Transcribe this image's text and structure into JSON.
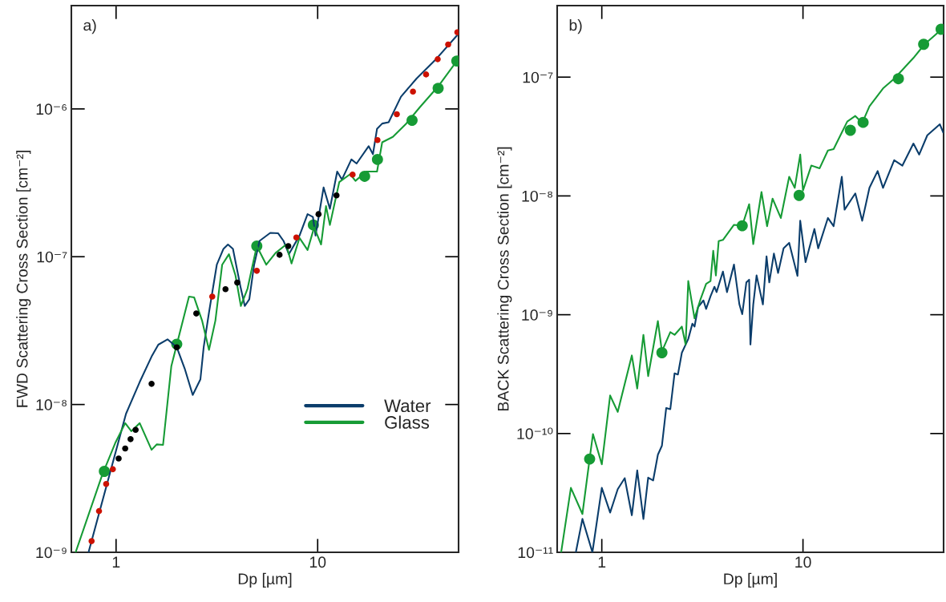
{
  "chart_data": [
    {
      "type": "line",
      "xlabel": "Dp [µm]",
      "ylabel": "FWD Scattering Cross Section [cm⁻²]",
      "annotations": [
        "a)"
      ],
      "log": "xy",
      "grid": false,
      "legend": "right",
      "xlim": [
        0.6,
        50
      ],
      "ylim": [
        1e-09,
        5e-06
      ],
      "xticks": [
        1,
        10
      ],
      "yticks": [
        {
          "value": 1e-09,
          "label": "10⁻⁹"
        },
        {
          "value": 1e-08,
          "label": "10⁻⁸"
        },
        {
          "value": 1e-07,
          "label": "10⁻⁷"
        },
        {
          "value": 1e-06,
          "label": "10⁻⁶"
        }
      ],
      "series": [
        {
          "name": "Water",
          "type": "line",
          "color": "#0b3d6b",
          "marker": "none",
          "x": [
            0.73,
            1.12,
            1.31,
            1.5,
            1.62,
            1.8,
            2.0,
            2.19,
            2.4,
            2.62,
            2.72,
            2.89,
            3.16,
            3.41,
            3.59,
            3.8,
            4.16,
            4.35,
            4.58,
            4.84,
            5.15,
            5.82,
            6.37,
            6.77,
            7.2,
            8.13,
            8.91,
            9.47,
            9.76,
            10.7,
            11.5,
            12.5,
            13.2,
            14.7,
            15.6,
            17.9,
            18.8,
            19.7,
            20.9,
            22.5,
            25.9,
            31.0,
            38.4,
            49.0
          ],
          "values": [
            1e-09,
            8.65e-09,
            1.42e-08,
            2.11e-08,
            2.54e-08,
            2.76e-08,
            2.44e-08,
            1.75e-08,
            1.16e-08,
            1.48e-08,
            2.44e-08,
            4.19e-08,
            8.83e-08,
            1.13e-07,
            1.21e-07,
            1.13e-07,
            6.08e-08,
            4.64e-08,
            5.15e-08,
            8.83e-08,
            1.28e-07,
            1.45e-07,
            1.44e-07,
            1.28e-07,
            1.04e-07,
            1.39e-07,
            1.94e-07,
            1.86e-07,
            1.39e-07,
            2.94e-07,
            2.11e-07,
            3.77e-07,
            3.33e-07,
            4.55e-07,
            4.27e-07,
            5.6e-07,
            4.94e-07,
            7.33e-07,
            7.96e-07,
            8.13e-07,
            1.21e-06,
            1.61e-06,
            2.15e-06,
            3.13e-06
          ]
        },
        {
          "name": "Glass",
          "type": "line",
          "color": "#169b35",
          "marker": "none",
          "x": [
            0.63,
            0.853,
            0.99,
            1.11,
            1.19,
            1.31,
            1.5,
            1.59,
            1.71,
            1.88,
            2.0,
            2.3,
            2.44,
            2.67,
            2.89,
            3.11,
            3.36,
            3.63,
            3.91,
            4.16,
            4.49,
            4.7,
            4.99,
            5.56,
            6.18,
            6.98,
            7.42,
            8.13,
            8.91,
            9.61,
            10.4,
            11.0,
            11.5,
            12.8,
            14.5,
            15.4,
            17.4,
            19.7,
            20.9,
            23.6,
            27.5,
            32.0,
            39.6,
            49.0
          ],
          "values": [
            1e-09,
            3.33e-09,
            5.48e-09,
            7.48e-09,
            6.6e-09,
            7.48e-09,
            4.94e-09,
            5.37e-09,
            5.33e-09,
            1.82e-08,
            2.54e-08,
            5.37e-08,
            5.3e-08,
            3.7e-08,
            2.34e-08,
            3.7e-08,
            8.83e-08,
            1.04e-07,
            7.48e-08,
            4.64e-08,
            6.08e-08,
            8.13e-08,
            1.18e-07,
            8.83e-08,
            1.06e-07,
            1.21e-07,
            9e-08,
            1.34e-07,
            1.11e-07,
            1.58e-07,
            1.21e-07,
            2.2e-07,
            1.64e-07,
            3.2e-07,
            3.62e-07,
            3.26e-07,
            3.77e-07,
            3.77e-07,
            5.95e-07,
            6.47e-07,
            7.96e-07,
            1.02e-06,
            1.42e-06,
            2.11e-06
          ]
        },
        {
          "type": "scatter",
          "color": "#169b35",
          "marker": "circle",
          "x": [
            0.875,
            2.0,
            4.99,
            9.52,
            17.1,
            19.8,
            29.4,
            39.6,
            49.0
          ],
          "values": [
            3.53e-09,
            2.56e-08,
            1.18e-07,
            1.64e-07,
            3.5e-07,
            4.55e-07,
            8.37e-07,
            1.38e-06,
            2.11e-06
          ]
        },
        {
          "type": "scatter",
          "color": "#cc1100",
          "marker": "circle",
          "x": [
            0.756,
            0.823,
            0.893,
            0.964,
            3.0,
            4.99,
            7.84,
            14.9,
            19.8,
            24.7,
            29.7,
            34.5,
            39.4,
            44.4,
            49.3
          ],
          "values": [
            1.19e-09,
            1.9e-09,
            2.9e-09,
            3.65e-09,
            5.37e-08,
            8.03e-08,
            1.35e-07,
            3.59e-07,
            6.15e-07,
            9.2e-07,
            1.31e-06,
            1.71e-06,
            2.17e-06,
            2.73e-06,
            3.3e-06
          ]
        },
        {
          "type": "scatter",
          "color": "#000000",
          "marker": "circle",
          "x": [
            1.03,
            1.11,
            1.18,
            1.25,
            1.5,
            2.0,
            2.5,
            3.49,
            3.99,
            6.47,
            7.15,
            10.1,
            12.4
          ],
          "values": [
            4.31e-09,
            5.04e-09,
            5.83e-09,
            6.74e-09,
            1.38e-08,
            2.44e-08,
            4.13e-08,
            6.03e-08,
            6.68e-08,
            1.03e-07,
            1.18e-07,
            1.94e-07,
            2.6e-07
          ]
        }
      ]
    },
    {
      "type": "line",
      "xlabel": "Dp [µm]",
      "ylabel": "BACK Scattering Cross Section [cm⁻²]",
      "annotations": [
        "b)"
      ],
      "log": "xy",
      "grid": false,
      "xlim": [
        0.6,
        50
      ],
      "ylim": [
        1e-11,
        4e-07
      ],
      "xticks": [
        1,
        10
      ],
      "yticks": [
        {
          "value": 1e-11,
          "label": "10⁻¹¹"
        },
        {
          "value": 1e-10,
          "label": "10⁻¹⁰"
        },
        {
          "value": 1e-09,
          "label": "10⁻⁹"
        },
        {
          "value": 1e-08,
          "label": "10⁻⁸"
        },
        {
          "value": 1e-07,
          "label": "10⁻⁷"
        }
      ],
      "series": [
        {
          "type": "line",
          "color": "#0b3d6b",
          "marker": "none",
          "x": [
            0.743,
            0.801,
            0.898,
            1.0,
            1.1,
            1.2,
            1.3,
            1.41,
            1.5,
            1.61,
            1.7,
            1.8,
            1.9,
            1.99,
            2.09,
            2.19,
            2.3,
            2.39,
            2.5,
            2.69,
            2.82,
            2.89,
            3.01,
            3.2,
            3.3,
            3.47,
            3.63,
            3.72,
            4.0,
            4.19,
            4.54,
            4.83,
            4.99,
            5.23,
            5.4,
            5.48,
            5.66,
            5.88,
            6.32,
            6.59,
            6.8,
            7.17,
            7.52,
            8.01,
            8.54,
            9.39,
            9.69,
            10.3,
            11.4,
            11.9,
            13.3,
            14.2,
            15.6,
            16.1,
            18.2,
            19.7,
            21.4,
            23.5,
            25.0,
            28.4,
            31.2,
            35.4,
            37.8,
            41.5,
            47.9,
            49.8
          ],
          "values": [
            1e-11,
            1.91e-11,
            1e-11,
            3.49e-11,
            2.16e-11,
            3.4e-11,
            4.21e-11,
            2.05e-11,
            4.89e-11,
            1.91e-11,
            4.25e-11,
            4.03e-11,
            6.63e-11,
            7.9e-11,
            1.64e-10,
            1.6e-10,
            3.21e-10,
            3.14e-10,
            4.79e-10,
            6.25e-10,
            8.4e-10,
            7.94e-10,
            1.16e-09,
            1.32e-09,
            1.12e-09,
            1.43e-09,
            1.72e-09,
            1.55e-09,
            2.31e-09,
            1.55e-09,
            2.64e-09,
            1.22e-09,
            1.01e-09,
            1.87e-09,
            1.97e-09,
            5.61e-10,
            1.22e-09,
            2.14e-09,
            1.22e-09,
            3.1e-09,
            1.87e-09,
            3.27e-09,
            2.25e-09,
            3.62e-09,
            4.03e-09,
            2.12e-09,
            6.18e-09,
            2.77e-09,
            5.27e-09,
            3.62e-09,
            6.52e-09,
            5.56e-09,
            1.45e-08,
            7.66e-09,
            1.05e-08,
            6.18e-09,
            1.17e-08,
            1.62e-08,
            1.17e-08,
            2e-08,
            1.8e-08,
            2.76e-08,
            2.23e-08,
            3.24e-08,
            4.01e-08,
            3.42e-08
          ]
        },
        {
          "type": "line",
          "color": "#169b35",
          "marker": "none",
          "x": [
            0.628,
            0.702,
            0.801,
            0.87,
            0.904,
            1.0,
            1.1,
            1.2,
            1.41,
            1.5,
            1.61,
            1.7,
            1.9,
            1.99,
            2.19,
            2.3,
            2.5,
            2.61,
            2.69,
            2.89,
            3.1,
            3.3,
            3.47,
            3.58,
            3.69,
            3.81,
            4.0,
            4.54,
            4.99,
            5.4,
            5.66,
            6.22,
            6.63,
            7.06,
            7.76,
            8.54,
            9.1,
            9.69,
            10.0,
            11.0,
            12.1,
            13.3,
            14.2,
            15.6,
            16.6,
            18.2,
            19.7,
            21.4,
            25.0,
            28.4,
            35.4,
            40.2,
            45.6,
            49.8
          ],
          "values": [
            1e-11,
            3.49e-11,
            2.1e-11,
            6.12e-11,
            9.9e-11,
            5.5e-11,
            2.09e-10,
            1.52e-10,
            4.54e-10,
            2.39e-10,
            6.77e-10,
            3.04e-10,
            8.84e-10,
            4.91e-10,
            7.14e-10,
            6.77e-10,
            7.94e-10,
            5.61e-10,
            1.92e-09,
            9.33e-10,
            1.36e-09,
            1.82e-09,
            1.92e-09,
            3.45e-09,
            2.14e-09,
            4.16e-09,
            4.26e-09,
            5.71e-09,
            5.61e-09,
            8.52e-09,
            3.93e-09,
            1.08e-08,
            5.56e-09,
            9.5e-09,
            6.52e-09,
            1.45e-08,
            1.17e-08,
            2.23e-08,
            1.11e-08,
            1.8e-08,
            1.71e-08,
            2.41e-08,
            2.48e-08,
            3.42e-08,
            4.23e-08,
            4.71e-08,
            4.12e-08,
            5.68e-08,
            8.04e-08,
            9.7e-08,
            1.45e-07,
            1.89e-07,
            2.28e-07,
            2.6e-07
          ]
        },
        {
          "type": "scatter",
          "color": "#169b35",
          "marker": "circle",
          "x": [
            0.87,
            1.99,
            4.99,
            9.57,
            17.2,
            19.9,
            29.8,
            39.8,
            48.6
          ],
          "values": [
            6.1e-11,
            4.79e-10,
            5.61e-09,
            1.01e-08,
            3.57e-08,
            4.16e-08,
            9.7e-08,
            1.89e-07,
            2.53e-07
          ]
        }
      ]
    }
  ]
}
